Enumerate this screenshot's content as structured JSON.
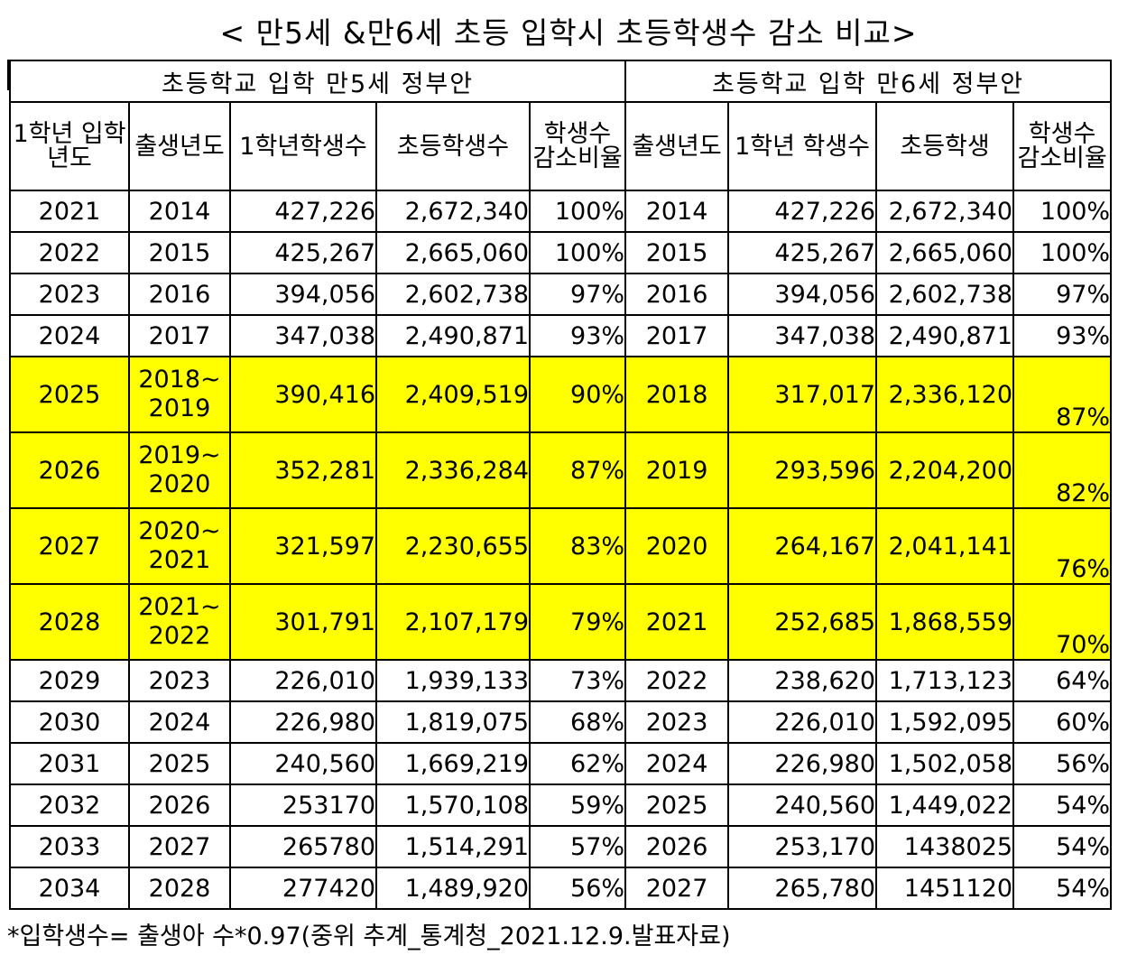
{
  "title": "< 만5세 &만6세 초등 입학시 초등학생수 감소 비교>",
  "groups": [
    "초등학교 입학 만5세 정부안",
    "초등학교 입학 만6세 정부안"
  ],
  "headers": [
    "1학년 입학년도",
    "출생년도",
    "1학년학생수",
    "초등학생수",
    "학생수 감소비율",
    "출생년도",
    "1학년 학생수",
    "초등학생",
    "학생수 감소비율"
  ],
  "rows": [
    {
      "year": "2021",
      "b5": "2014",
      "b5_end": "",
      "n5": "427,226",
      "t5": "2,672,340",
      "r5": "100%",
      "b6": "2014",
      "n6": "427,226",
      "t6": "2,672,340",
      "r6": "100%"
    },
    {
      "year": "2022",
      "b5": "2015",
      "b5_end": "",
      "n5": "425,267",
      "t5": "2,665,060",
      "r5": "100%",
      "b6": "2015",
      "n6": "425,267",
      "t6": "2,665,060",
      "r6": "100%"
    },
    {
      "year": "2023",
      "b5": "2016",
      "b5_end": "",
      "n5": "394,056",
      "t5": "2,602,738",
      "r5": "97%",
      "b6": "2016",
      "n6": "394,056",
      "t6": "2,602,738",
      "r6": "97%"
    },
    {
      "year": "2024",
      "b5": "2017",
      "b5_end": "",
      "n5": "347,038",
      "t5": "2,490,871",
      "r5": "93%",
      "b6": "2017",
      "n6": "347,038",
      "t6": "2,490,871",
      "r6": "93%"
    },
    {
      "year": "2025",
      "b5": "2018~",
      "b5_end": "2019",
      "n5": "390,416",
      "t5": "2,409,519",
      "r5": "90%",
      "b6": "2018",
      "n6": "317,017",
      "t6": "2,336,120",
      "r6": "87%"
    },
    {
      "year": "2026",
      "b5": "2019~",
      "b5_end": "2020",
      "n5": "352,281",
      "t5": "2,336,284",
      "r5": "87%",
      "b6": "2019",
      "n6": "293,596",
      "t6": "2,204,200",
      "r6": "82%"
    },
    {
      "year": "2027",
      "b5": "2020~",
      "b5_end": "2021",
      "n5": "321,597",
      "t5": "2,230,655",
      "r5": "83%",
      "b6": "2020",
      "n6": "264,167",
      "t6": "2,041,141",
      "r6": "76%"
    },
    {
      "year": "2028",
      "b5": "2021~",
      "b5_end": "2022",
      "n5": "301,791",
      "t5": "2,107,179",
      "r5": "79%",
      "b6": "2021",
      "n6": "252,685",
      "t6": "1,868,559",
      "r6": "70%"
    },
    {
      "year": "2029",
      "b5": "2023",
      "b5_end": "",
      "n5": "226,010",
      "t5": "1,939,133",
      "r5": "73%",
      "b6": "2022",
      "n6": "238,620",
      "t6": "1,713,123",
      "r6": "64%"
    },
    {
      "year": "2030",
      "b5": "2024",
      "b5_end": "",
      "n5": "226,980",
      "t5": "1,819,075",
      "r5": "68%",
      "b6": "2023",
      "n6": "226,010",
      "t6": "1,592,095",
      "r6": "60%"
    },
    {
      "year": "2031",
      "b5": "2025",
      "b5_end": "",
      "n5": "240,560",
      "t5": "1,669,219",
      "r5": "62%",
      "b6": "2024",
      "n6": "226,980",
      "t6": "1,502,058",
      "r6": "56%"
    },
    {
      "year": "2032",
      "b5": "2026",
      "b5_end": "",
      "n5": "253170",
      "t5": "1,570,108",
      "r5": "59%",
      "b6": "2025",
      "n6": "240,560",
      "t6": "1,449,022",
      "r6": "54%"
    },
    {
      "year": "2033",
      "b5": "2027",
      "b5_end": "",
      "n5": "265780",
      "t5": "1,514,291",
      "r5": "57%",
      "b6": "2026",
      "n6": "253,170",
      "t6": "1438025",
      "r6": "54%"
    },
    {
      "year": "2034",
      "b5": "2028",
      "b5_end": "",
      "n5": "277420",
      "t5": "1,489,920",
      "r5": "56%",
      "b6": "2027",
      "n6": "265,780",
      "t6": "1451120",
      "r6": "54%"
    }
  ],
  "highlight_color": "#ffff00",
  "footnote": "*입학생수= 출생아 수*0.97(중위 추계_통계청_2021.12.9.발표자료)"
}
